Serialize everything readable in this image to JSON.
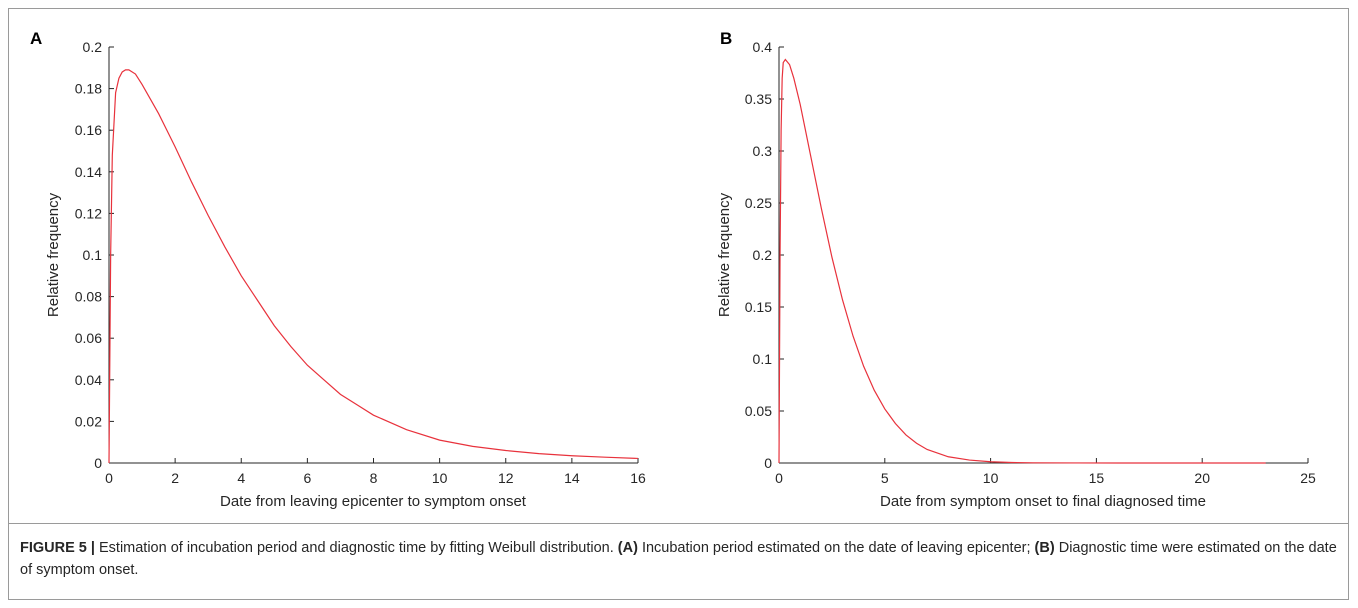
{
  "chart_data": [
    {
      "panel": "A",
      "type": "line",
      "xlabel": "Date from leaving epicenter to symptom onset",
      "ylabel": "Relative frequency",
      "xlim": [
        0,
        16
      ],
      "ylim": [
        0,
        0.2
      ],
      "xticks": [
        "0",
        "2",
        "4",
        "6",
        "8",
        "10",
        "12",
        "14",
        "16"
      ],
      "yticks": [
        "0",
        "0.02",
        "0.04",
        "0.06",
        "0.08",
        "0.1",
        "0.12",
        "0.14",
        "0.16",
        "0.18",
        "0.2"
      ],
      "grid": false,
      "color": "#e8323c",
      "series": [
        {
          "x": [
            0,
            0.05,
            0.1,
            0.2,
            0.3,
            0.4,
            0.5,
            0.6,
            0.8,
            1,
            1.5,
            2,
            2.5,
            3,
            3.5,
            4,
            4.5,
            5,
            5.5,
            6,
            6.5,
            7,
            7.5,
            8,
            9,
            10,
            11,
            12,
            13,
            14,
            15,
            16
          ],
          "y": [
            0,
            0.1,
            0.148,
            0.178,
            0.185,
            0.188,
            0.189,
            0.189,
            0.187,
            0.182,
            0.168,
            0.152,
            0.135,
            0.119,
            0.104,
            0.09,
            0.078,
            0.066,
            0.056,
            0.047,
            0.04,
            0.033,
            0.028,
            0.023,
            0.016,
            0.011,
            0.008,
            0.006,
            0.0045,
            0.0035,
            0.0028,
            0.0022
          ]
        }
      ]
    },
    {
      "panel": "B",
      "type": "line",
      "xlabel": "Date from symptom onset to final diagnosed time",
      "ylabel": "Relative frequency",
      "xlim": [
        0,
        25
      ],
      "ylim": [
        0,
        0.4
      ],
      "xticks": [
        "0",
        "5",
        "10",
        "15",
        "20",
        "25"
      ],
      "yticks": [
        "0",
        "0.05",
        "0.1",
        "0.15",
        "0.2",
        "0.25",
        "0.3",
        "0.35",
        "0.4"
      ],
      "grid": false,
      "color": "#e8323c",
      "series": [
        {
          "x": [
            0,
            0.05,
            0.1,
            0.15,
            0.2,
            0.3,
            0.5,
            0.7,
            1,
            1.5,
            2,
            2.5,
            3,
            3.5,
            4,
            4.5,
            5,
            5.5,
            6,
            6.5,
            7,
            8,
            9,
            10,
            11,
            12,
            14,
            16,
            18,
            20,
            23
          ],
          "y": [
            0,
            0.2,
            0.32,
            0.37,
            0.385,
            0.388,
            0.383,
            0.37,
            0.345,
            0.295,
            0.245,
            0.198,
            0.157,
            0.122,
            0.093,
            0.07,
            0.052,
            0.038,
            0.027,
            0.019,
            0.013,
            0.006,
            0.0028,
            0.0012,
            0.0005,
            0.0002,
            5e-05,
            1e-05,
            0.0,
            0.0,
            0.0
          ]
        }
      ]
    }
  ],
  "caption": {
    "label": "FIGURE 5 |",
    "text1": " Estimation of incubation period and diagnostic time by fitting Weibull distribution. ",
    "a_ref": "(A)",
    "text2": " Incubation period estimated on the date of leaving epicenter; ",
    "b_ref": "(B)",
    "text3": " Diagnostic time were estimated on the date of symptom onset."
  }
}
